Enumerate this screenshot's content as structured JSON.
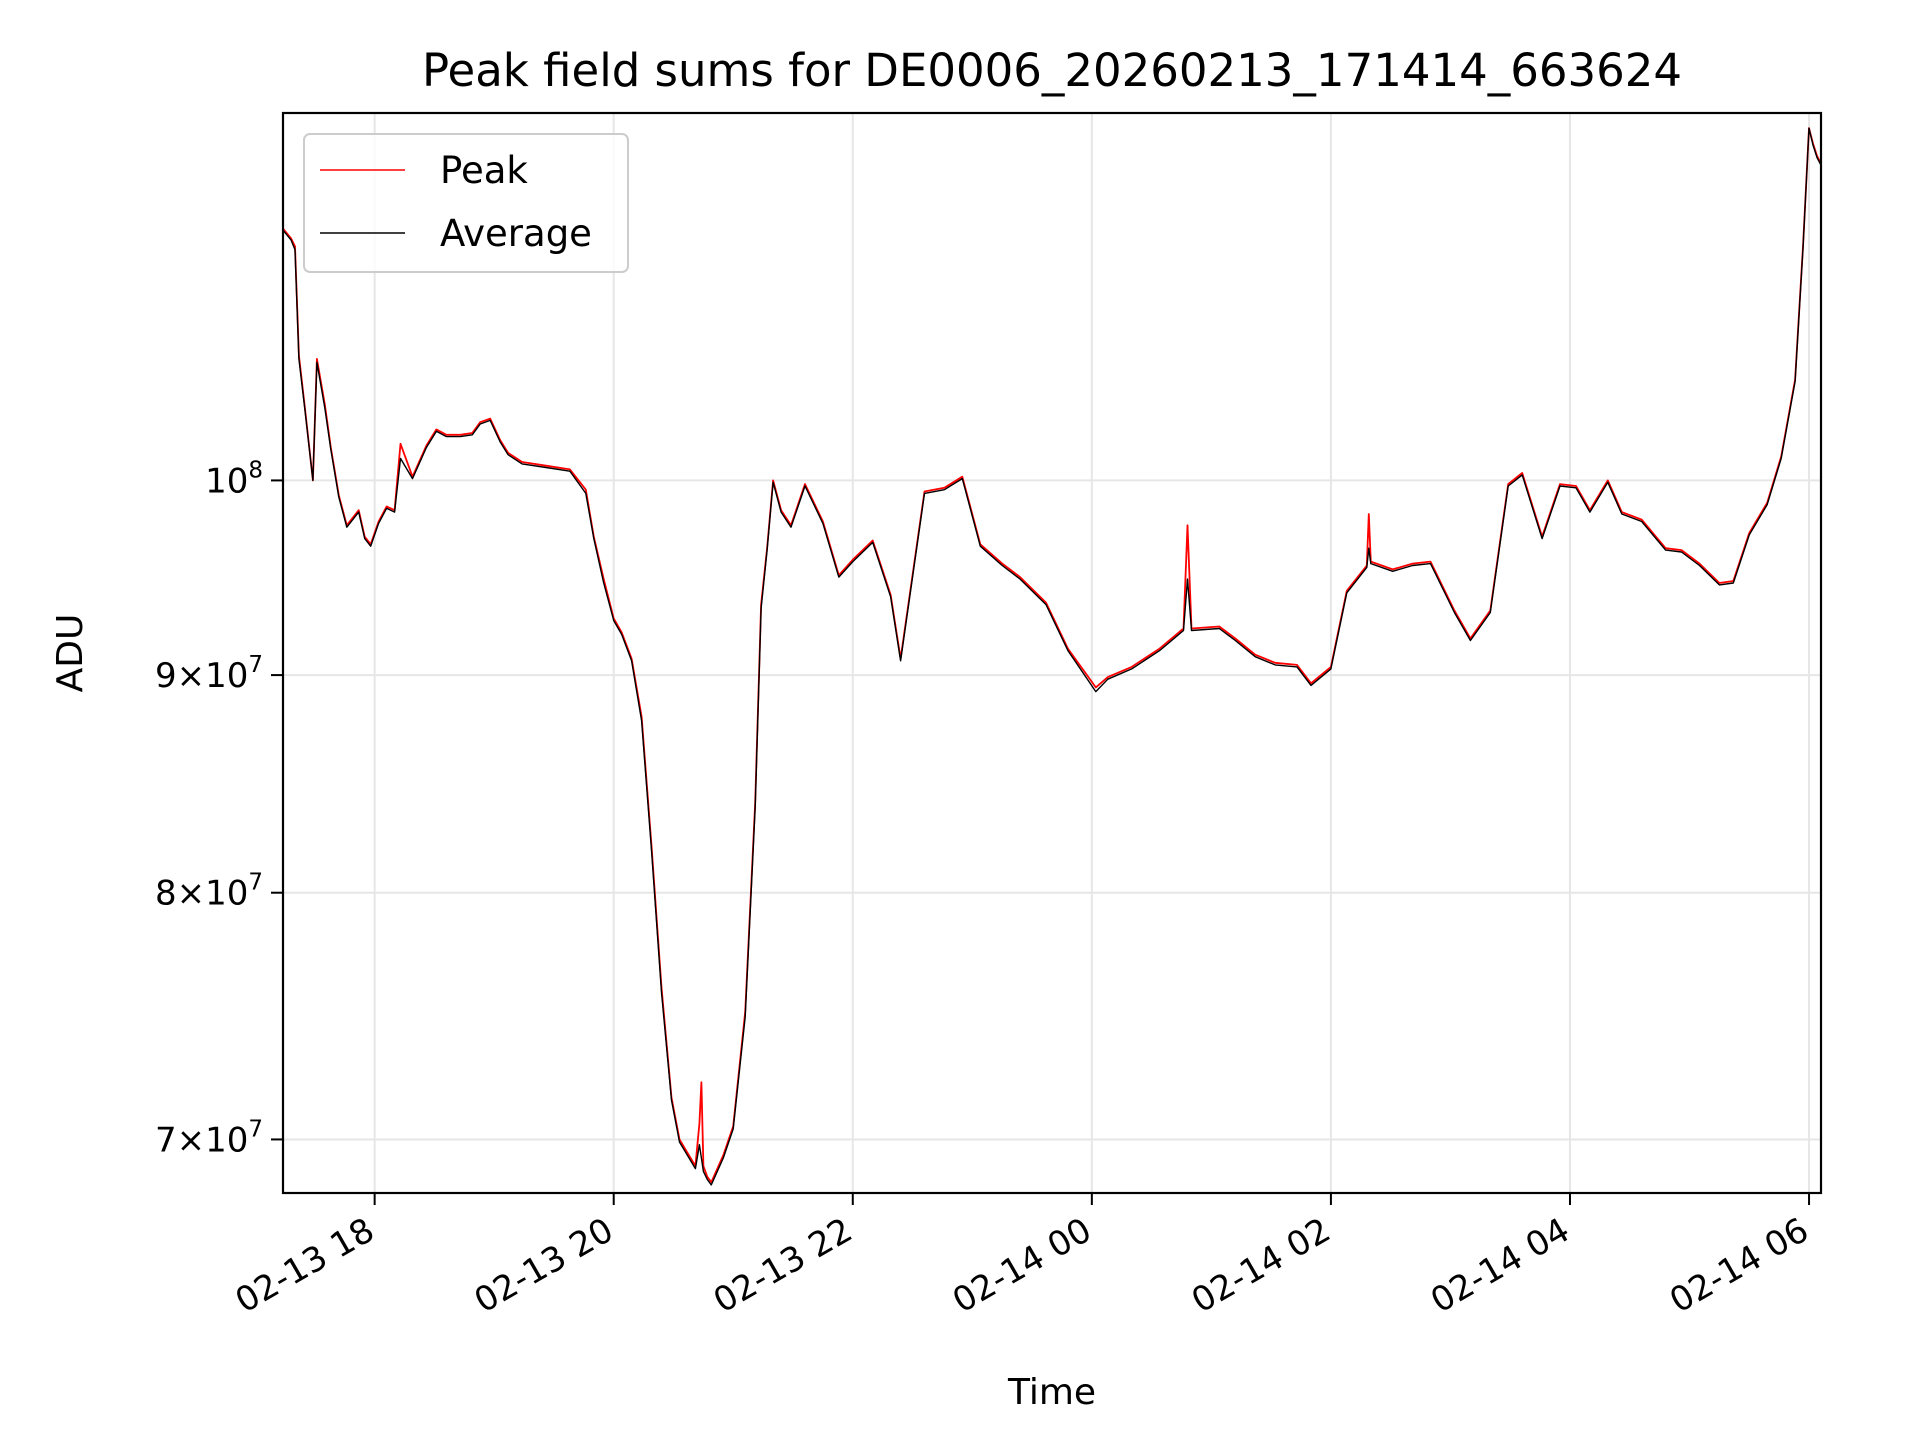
{
  "chart_data": {
    "type": "line",
    "title": "Peak field sums for DE0006_20260213_171414_663624",
    "xlabel": "Time",
    "ylabel": "ADU",
    "yscale": "log",
    "grid": true,
    "legend_position": "top-left",
    "xlim": [
      "2026-02-13 17:14",
      "2026-02-14 06:06"
    ],
    "ylim": [
      68000000,
      122000000
    ],
    "x_ticks": [
      {
        "t": "2026-02-13 18:00",
        "label": "02-13 18"
      },
      {
        "t": "2026-02-13 20:00",
        "label": "02-13 20"
      },
      {
        "t": "2026-02-13 22:00",
        "label": "02-13 22"
      },
      {
        "t": "2026-02-14 00:00",
        "label": "02-14 00"
      },
      {
        "t": "2026-02-14 02:00",
        "label": "02-14 02"
      },
      {
        "t": "2026-02-14 04:00",
        "label": "02-14 04"
      },
      {
        "t": "2026-02-14 06:00",
        "label": "02-14 06"
      }
    ],
    "y_ticks": [
      {
        "v": 70000000,
        "mant": "7",
        "exp": "7"
      },
      {
        "v": 80000000,
        "mant": "8",
        "exp": "7"
      },
      {
        "v": 90000000,
        "mant": "9",
        "exp": "7"
      },
      {
        "v": 100000000,
        "mant": "",
        "exp": "8"
      }
    ],
    "series": [
      {
        "name": "Peak",
        "color": "#ff0000",
        "x": [
          "2026-02-13 17:14",
          "2026-02-13 17:18",
          "2026-02-13 17:20",
          "2026-02-13 17:22",
          "2026-02-13 17:25",
          "2026-02-13 17:29",
          "2026-02-13 17:31",
          "2026-02-13 17:35",
          "2026-02-13 17:38",
          "2026-02-13 17:42",
          "2026-02-13 17:46",
          "2026-02-13 17:52",
          "2026-02-13 17:55",
          "2026-02-13 17:58",
          "2026-02-13 18:02",
          "2026-02-13 18:06",
          "2026-02-13 18:10",
          "2026-02-13 18:13",
          "2026-02-13 18:19",
          "2026-02-13 18:26",
          "2026-02-13 18:31",
          "2026-02-13 18:36",
          "2026-02-13 18:43",
          "2026-02-13 18:49",
          "2026-02-13 18:53",
          "2026-02-13 18:58",
          "2026-02-13 19:03",
          "2026-02-13 19:07",
          "2026-02-13 19:14",
          "2026-02-13 19:26",
          "2026-02-13 19:38",
          "2026-02-13 19:46",
          "2026-02-13 19:50",
          "2026-02-13 19:55",
          "2026-02-13 20:00",
          "2026-02-13 20:04",
          "2026-02-13 20:09",
          "2026-02-13 20:14",
          "2026-02-13 20:19",
          "2026-02-13 20:24",
          "2026-02-13 20:29",
          "2026-02-13 20:33",
          "2026-02-13 20:37",
          "2026-02-13 20:41",
          "2026-02-13 20:43",
          "2026-02-13 20:44",
          "2026-02-13 20:45",
          "2026-02-13 20:47",
          "2026-02-13 20:49",
          "2026-02-13 20:55",
          "2026-02-13 21:00",
          "2026-02-13 21:06",
          "2026-02-13 21:11",
          "2026-02-13 21:14",
          "2026-02-13 21:17",
          "2026-02-13 21:20",
          "2026-02-13 21:24",
          "2026-02-13 21:29",
          "2026-02-13 21:36",
          "2026-02-13 21:45",
          "2026-02-13 21:53",
          "2026-02-13 22:00",
          "2026-02-13 22:10",
          "2026-02-13 22:19",
          "2026-02-13 22:24",
          "2026-02-13 22:36",
          "2026-02-13 22:46",
          "2026-02-13 22:55",
          "2026-02-13 23:04",
          "2026-02-13 23:15",
          "2026-02-13 23:24",
          "2026-02-13 23:37",
          "2026-02-13 23:48",
          "2026-02-14 00:02",
          "2026-02-14 00:08",
          "2026-02-14 00:20",
          "2026-02-14 00:34",
          "2026-02-14 00:46",
          "2026-02-14 00:48",
          "2026-02-14 00:50",
          "2026-02-14 01:04",
          "2026-02-14 01:12",
          "2026-02-14 01:22",
          "2026-02-14 01:32",
          "2026-02-14 01:43",
          "2026-02-14 01:50",
          "2026-02-14 02:00",
          "2026-02-14 02:08",
          "2026-02-14 02:18",
          "2026-02-14 02:19",
          "2026-02-14 02:20",
          "2026-02-14 02:31",
          "2026-02-14 02:41",
          "2026-02-14 02:50",
          "2026-02-14 03:02",
          "2026-02-14 03:10",
          "2026-02-14 03:20",
          "2026-02-14 03:29",
          "2026-02-14 03:36",
          "2026-02-14 03:46",
          "2026-02-14 03:55",
          "2026-02-14 04:03",
          "2026-02-14 04:10",
          "2026-02-14 04:19",
          "2026-02-14 04:26",
          "2026-02-14 04:36",
          "2026-02-14 04:48",
          "2026-02-14 04:56",
          "2026-02-14 05:05",
          "2026-02-14 05:15",
          "2026-02-14 05:22",
          "2026-02-14 05:30",
          "2026-02-14 05:39",
          "2026-02-14 05:46",
          "2026-02-14 05:53",
          "2026-02-14 05:57",
          "2026-02-14 06:00",
          "2026-02-14 06:02",
          "2026-02-14 06:04",
          "2026-02-14 06:06"
        ],
        "values": [
          114600000,
          114000000,
          113500000,
          107000000,
          104000000,
          100000000,
          106800000,
          104200000,
          101800000,
          99200000,
          97600000,
          98400000,
          97000000,
          96600000,
          97800000,
          98600000,
          98400000,
          102000000,
          100200000,
          101900000,
          102800000,
          102500000,
          102500000,
          102600000,
          103200000,
          103400000,
          102200000,
          101500000,
          101000000,
          100800000,
          100600000,
          99500000,
          97000000,
          94800000,
          92800000,
          92100000,
          90800000,
          88000000,
          82000000,
          76000000,
          71600000,
          70000000,
          69500000,
          69000000,
          70600000,
          72200000,
          69000000,
          68600000,
          68400000,
          69400000,
          70500000,
          75000000,
          84000000,
          93500000,
          96400000,
          100000000,
          98400000,
          97600000,
          99800000,
          97800000,
          95000000,
          95800000,
          96800000,
          94000000,
          90800000,
          99400000,
          99600000,
          100200000,
          96600000,
          95600000,
          94900000,
          93600000,
          91300000,
          89400000,
          89900000,
          90400000,
          91300000,
          92300000,
          97600000,
          92300000,
          92400000,
          91800000,
          91000000,
          90600000,
          90500000,
          89600000,
          90400000,
          94200000,
          95500000,
          98200000,
          95700000,
          95300000,
          95600000,
          95700000,
          93200000,
          91800000,
          93200000,
          99800000,
          100400000,
          97000000,
          99800000,
          99700000,
          98400000,
          100000000,
          98300000,
          97900000,
          96400000,
          96300000,
          95600000,
          94600000,
          94700000,
          97200000,
          98800000,
          101300000,
          105600000,
          113600000,
          121000000,
          120000000,
          119200000,
          118700000
        ]
      },
      {
        "name": "Average",
        "color": "#000000",
        "x": [
          "2026-02-13 17:14",
          "2026-02-13 17:18",
          "2026-02-13 17:20",
          "2026-02-13 17:22",
          "2026-02-13 17:25",
          "2026-02-13 17:29",
          "2026-02-13 17:31",
          "2026-02-13 17:35",
          "2026-02-13 17:38",
          "2026-02-13 17:42",
          "2026-02-13 17:46",
          "2026-02-13 17:52",
          "2026-02-13 17:55",
          "2026-02-13 17:58",
          "2026-02-13 18:02",
          "2026-02-13 18:06",
          "2026-02-13 18:10",
          "2026-02-13 18:13",
          "2026-02-13 18:19",
          "2026-02-13 18:26",
          "2026-02-13 18:31",
          "2026-02-13 18:36",
          "2026-02-13 18:43",
          "2026-02-13 18:49",
          "2026-02-13 18:53",
          "2026-02-13 18:58",
          "2026-02-13 19:03",
          "2026-02-13 19:07",
          "2026-02-13 19:14",
          "2026-02-13 19:26",
          "2026-02-13 19:38",
          "2026-02-13 19:46",
          "2026-02-13 19:50",
          "2026-02-13 19:55",
          "2026-02-13 20:00",
          "2026-02-13 20:04",
          "2026-02-13 20:09",
          "2026-02-13 20:14",
          "2026-02-13 20:19",
          "2026-02-13 20:24",
          "2026-02-13 20:29",
          "2026-02-13 20:33",
          "2026-02-13 20:37",
          "2026-02-13 20:41",
          "2026-02-13 20:43",
          "2026-02-13 20:44",
          "2026-02-13 20:45",
          "2026-02-13 20:47",
          "2026-02-13 20:49",
          "2026-02-13 20:55",
          "2026-02-13 21:00",
          "2026-02-13 21:06",
          "2026-02-13 21:11",
          "2026-02-13 21:14",
          "2026-02-13 21:17",
          "2026-02-13 21:20",
          "2026-02-13 21:24",
          "2026-02-13 21:29",
          "2026-02-13 21:36",
          "2026-02-13 21:45",
          "2026-02-13 21:53",
          "2026-02-13 22:00",
          "2026-02-13 22:10",
          "2026-02-13 22:19",
          "2026-02-13 22:24",
          "2026-02-13 22:36",
          "2026-02-13 22:46",
          "2026-02-13 22:55",
          "2026-02-13 23:04",
          "2026-02-13 23:15",
          "2026-02-13 23:24",
          "2026-02-13 23:37",
          "2026-02-13 23:48",
          "2026-02-14 00:02",
          "2026-02-14 00:08",
          "2026-02-14 00:20",
          "2026-02-14 00:34",
          "2026-02-14 00:46",
          "2026-02-14 00:48",
          "2026-02-14 00:50",
          "2026-02-14 01:04",
          "2026-02-14 01:12",
          "2026-02-14 01:22",
          "2026-02-14 01:32",
          "2026-02-14 01:43",
          "2026-02-14 01:50",
          "2026-02-14 02:00",
          "2026-02-14 02:08",
          "2026-02-14 02:18",
          "2026-02-14 02:19",
          "2026-02-14 02:20",
          "2026-02-14 02:31",
          "2026-02-14 02:41",
          "2026-02-14 02:50",
          "2026-02-14 03:02",
          "2026-02-14 03:10",
          "2026-02-14 03:20",
          "2026-02-14 03:29",
          "2026-02-14 03:36",
          "2026-02-14 03:46",
          "2026-02-14 03:55",
          "2026-02-14 04:03",
          "2026-02-14 04:10",
          "2026-02-14 04:19",
          "2026-02-14 04:26",
          "2026-02-14 04:36",
          "2026-02-14 04:48",
          "2026-02-14 04:56",
          "2026-02-14 05:05",
          "2026-02-14 05:15",
          "2026-02-14 05:22",
          "2026-02-14 05:30",
          "2026-02-14 05:39",
          "2026-02-14 05:46",
          "2026-02-14 05:53",
          "2026-02-14 05:57",
          "2026-02-14 06:00",
          "2026-02-14 06:02",
          "2026-02-14 06:04",
          "2026-02-14 06:06"
        ],
        "values": [
          114500000,
          113900000,
          113300000,
          106800000,
          103900000,
          100000000,
          106600000,
          104000000,
          101700000,
          99100000,
          97500000,
          98300000,
          96900000,
          96500000,
          97700000,
          98500000,
          98300000,
          101200000,
          100100000,
          101800000,
          102700000,
          102400000,
          102400000,
          102500000,
          103100000,
          103300000,
          102100000,
          101400000,
          100900000,
          100700000,
          100500000,
          99300000,
          96900000,
          94600000,
          92700000,
          92000000,
          90700000,
          87800000,
          81800000,
          75800000,
          71500000,
          69900000,
          69400000,
          68900000,
          69800000,
          69300000,
          68800000,
          68500000,
          68300000,
          69300000,
          70400000,
          74800000,
          83800000,
          93300000,
          96300000,
          99900000,
          98300000,
          97500000,
          99700000,
          97700000,
          94900000,
          95700000,
          96700000,
          93900000,
          90700000,
          99300000,
          99500000,
          100100000,
          96500000,
          95500000,
          94800000,
          93500000,
          91200000,
          89200000,
          89800000,
          90300000,
          91200000,
          92200000,
          94800000,
          92200000,
          92300000,
          91700000,
          90900000,
          90500000,
          90400000,
          89500000,
          90300000,
          94100000,
          95400000,
          96400000,
          95600000,
          95200000,
          95500000,
          95600000,
          93100000,
          91700000,
          93100000,
          99700000,
          100300000,
          96900000,
          99700000,
          99600000,
          98300000,
          99900000,
          98200000,
          97800000,
          96300000,
          96200000,
          95500000,
          94500000,
          94600000,
          97100000,
          98700000,
          101200000,
          105500000,
          113500000,
          121000000,
          119900000,
          119100000,
          118600000
        ]
      }
    ]
  }
}
